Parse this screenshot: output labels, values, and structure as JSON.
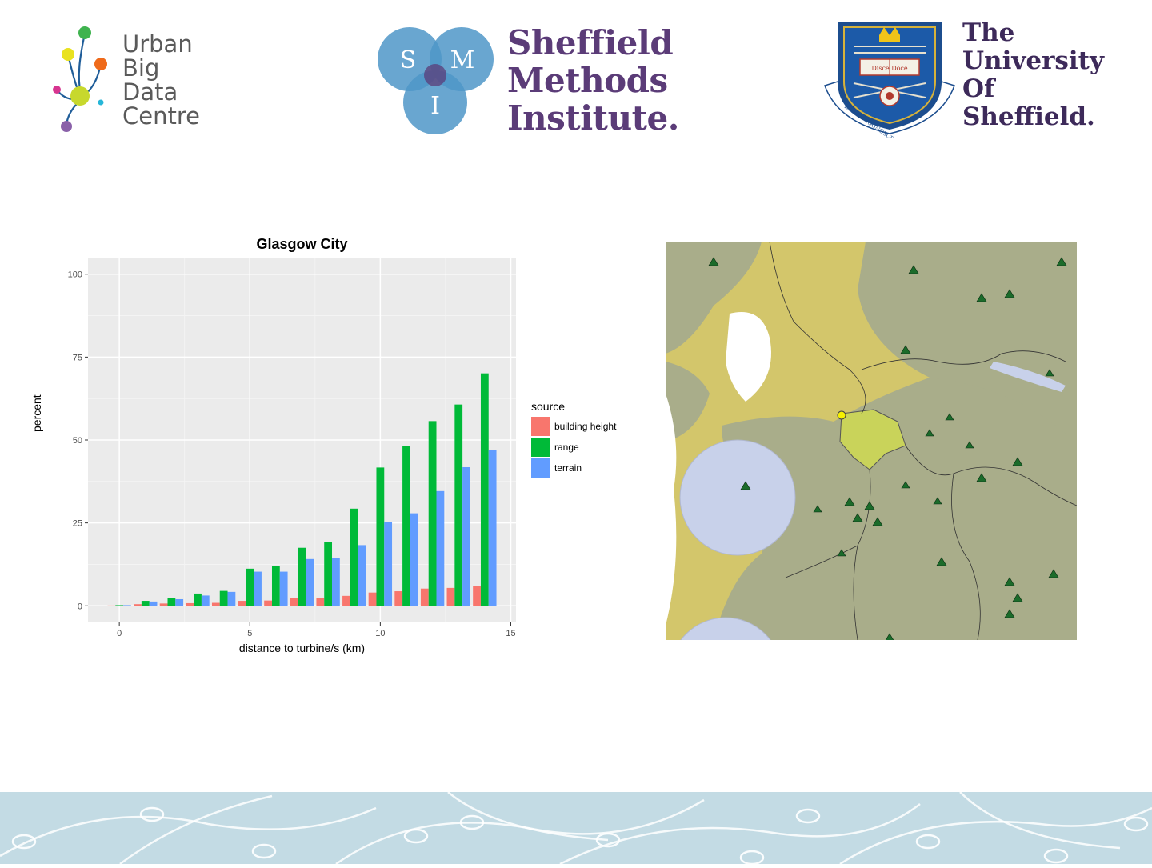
{
  "header": {
    "ubdc_lines": [
      "Urban",
      "Big",
      "Data",
      "Centre"
    ],
    "smi_letters": [
      "S",
      "M",
      "I"
    ],
    "smi_lines": [
      "Sheffield",
      "Methods",
      "Institute."
    ],
    "uos_lines": [
      "The",
      "University",
      "Of",
      "Sheffield."
    ],
    "crest_motto_1": "Disce Doce",
    "crest_motto_2": "RERVM COGNOSCERE CAVSAS"
  },
  "colors": {
    "building_height": "#f8766d",
    "range": "#00ba38",
    "terrain": "#619cff",
    "panel_bg": "#ebebeb",
    "ubdc_text": "#5a5a5a",
    "smi_purple": "#5b3c78",
    "smi_blue": "#4f97c8",
    "uos_navy": "#1c4d8e",
    "footer": "#c3dbe4"
  },
  "chart_data": {
    "type": "bar",
    "title": "Glasgow City",
    "xlabel": "distance to turbine/s (km)",
    "ylabel": "percent",
    "x": [
      0,
      1,
      2,
      3,
      4,
      5,
      6,
      7,
      8,
      9,
      10,
      11,
      12,
      13,
      14
    ],
    "xlim": [
      -1.2,
      15.2
    ],
    "ylim": [
      -5,
      105
    ],
    "xticks": [
      "0",
      "5",
      "10",
      "15"
    ],
    "yticks": [
      "0",
      "25",
      "50",
      "75",
      "100"
    ],
    "grid": true,
    "legend_title": "source",
    "legend_position": "right",
    "series": [
      {
        "name": "building height",
        "values": [
          0.1,
          0.5,
          0.7,
          0.8,
          0.9,
          1.5,
          1.6,
          2.4,
          2.3,
          3.0,
          4.0,
          4.4,
          5.2,
          5.4,
          6.0
        ]
      },
      {
        "name": "range",
        "values": [
          0.2,
          1.5,
          2.3,
          3.7,
          4.5,
          11.2,
          12.0,
          17.5,
          19.2,
          29.3,
          41.7,
          48.1,
          55.7,
          60.7,
          70.1
        ]
      },
      {
        "name": "terrain",
        "values": [
          0.2,
          1.3,
          2.0,
          3.1,
          4.2,
          10.3,
          10.3,
          14.1,
          14.3,
          18.3,
          25.3,
          27.9,
          34.6,
          41.8,
          46.9
        ]
      }
    ]
  },
  "map": {
    "marker_icon": "tree-triangle-icon"
  }
}
